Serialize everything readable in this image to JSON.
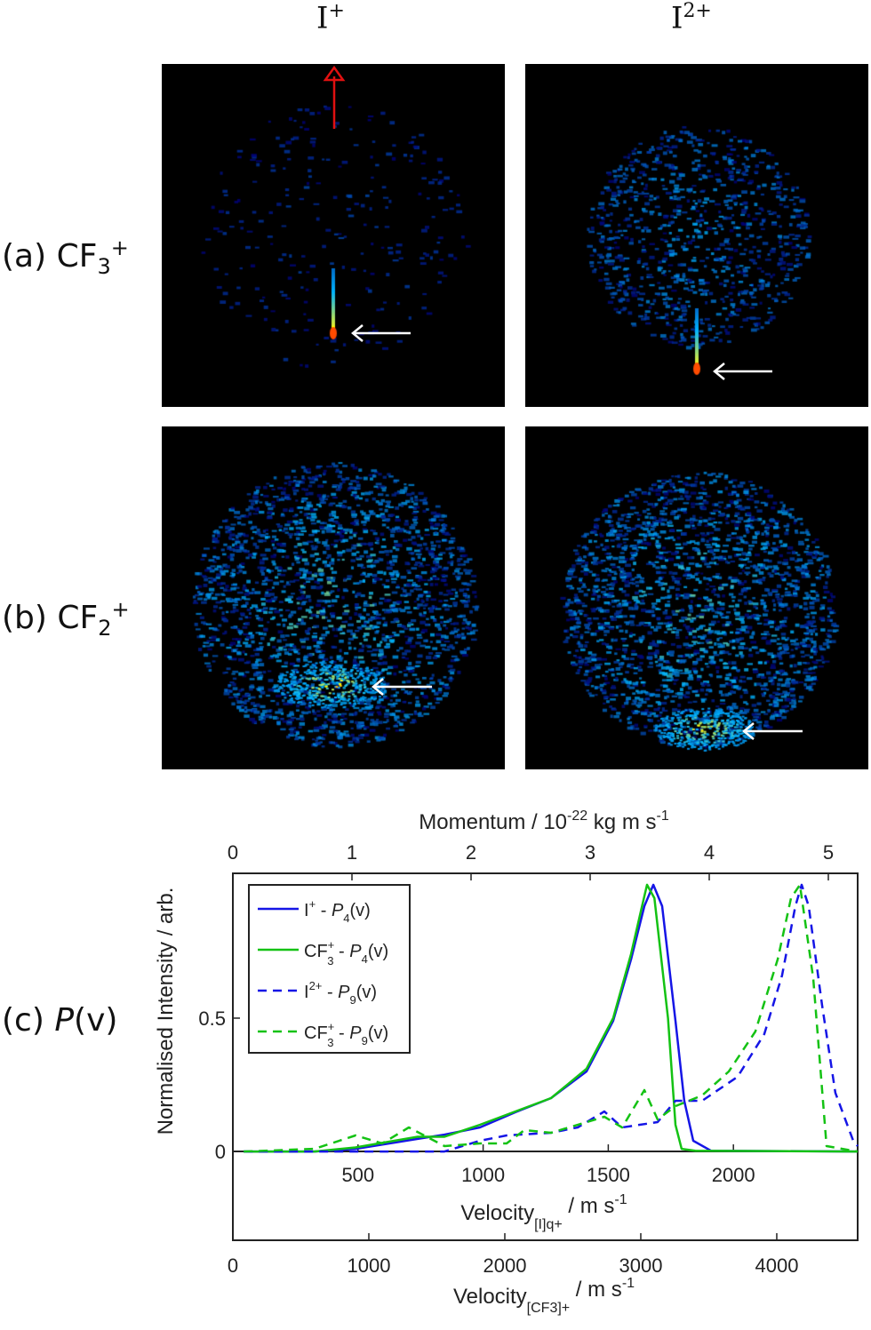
{
  "columns": {
    "c1": {
      "base": "I",
      "sup": "+"
    },
    "c2": {
      "base": "I",
      "sup": "2+"
    }
  },
  "rows": {
    "a": {
      "prefix": "(a) CF",
      "sub": "3",
      "sup": "+"
    },
    "b": {
      "prefix": "(b) CF",
      "sub": "2",
      "sup": "+"
    },
    "c": {
      "prefix": "(c) ",
      "italic": "P",
      "suffix": "(v)"
    }
  },
  "colors": {
    "blue": "#1515e6",
    "green": "#14c214",
    "image_bg": "#000000",
    "polarisation_arrow": "#e01010",
    "marker_arrow": "#ffffff"
  },
  "chart_data": {
    "type": "line",
    "xlabel_bottom": {
      "base": "Velocity",
      "sub": "[CF3]+",
      "unit": " / m s",
      "exp": "-1"
    },
    "xlabel_middle": {
      "base": "Velocity",
      "sub": "[I]q+",
      "unit": " / m s",
      "exp": "-1"
    },
    "xlabel_top": {
      "base": "Momentum / 10",
      "exp": "-22",
      "unit": " kg m s",
      "exp2": "-1"
    },
    "ylabel": "Normalised Intensity / arb.",
    "xlim": [
      0,
      4595
    ],
    "ylim": [
      -0.333,
      1.043
    ],
    "bottom_ticks": [
      0,
      1000,
      2000,
      3000,
      4000
    ],
    "middle_ticks": [
      500,
      1000,
      1500,
      2000
    ],
    "top_ticks": [
      0,
      1,
      2,
      3,
      4,
      5
    ],
    "y_ticks": [
      0,
      0.5
    ],
    "grid": false,
    "legend_position": "top-left",
    "series": [
      {
        "name": {
          "base": "I",
          "sup": "+",
          "sub": "",
          "p": "4"
        },
        "color": "#1515e6",
        "dash": false,
        "x": [
          80,
          600,
          902,
          1359,
          1556,
          1817,
          2078,
          2340,
          2601,
          2797,
          2928,
          3026,
          3092,
          3157,
          3255,
          3320,
          3386,
          3516,
          4595
        ],
        "y": [
          0,
          0,
          0.01,
          0.047,
          0.063,
          0.09,
          0.147,
          0.2,
          0.3,
          0.49,
          0.72,
          0.92,
          1.0,
          0.92,
          0.49,
          0.19,
          0.04,
          0.003,
          0
        ]
      },
      {
        "name": {
          "base": "CF",
          "sup": "+",
          "sub": "3",
          "p": "4"
        },
        "color": "#14c214",
        "dash": false,
        "x": [
          80,
          600,
          902,
          1359,
          1556,
          1817,
          2078,
          2340,
          2601,
          2797,
          2928,
          3000,
          3046,
          3100,
          3200,
          3255,
          3300,
          3400,
          4595
        ],
        "y": [
          0,
          0,
          0.015,
          0.055,
          0.055,
          0.1,
          0.15,
          0.2,
          0.31,
          0.5,
          0.74,
          0.9,
          1.0,
          0.95,
          0.5,
          0.1,
          0.01,
          0.003,
          0
        ]
      },
      {
        "name": {
          "base": "I",
          "sup": "2+",
          "sub": "",
          "p": "9"
        },
        "color": "#1515e6",
        "dash": true,
        "x": [
          80,
          1556,
          1817,
          2013,
          2340,
          2536,
          2732,
          2863,
          3124,
          3255,
          3451,
          3712,
          3908,
          4039,
          4137,
          4183,
          4235,
          4333,
          4431,
          4562,
          4595
        ],
        "y": [
          0,
          0,
          0.04,
          0.06,
          0.07,
          0.09,
          0.15,
          0.09,
          0.11,
          0.19,
          0.19,
          0.28,
          0.44,
          0.66,
          0.92,
          1.0,
          0.92,
          0.55,
          0.22,
          0.04,
          0.02
        ]
      },
      {
        "name": {
          "base": "CF",
          "sup": "+",
          "sub": "3",
          "p": "9"
        },
        "color": "#14c214",
        "dash": true,
        "x": [
          80,
          600,
          902,
          1098,
          1294,
          1556,
          1817,
          2013,
          2144,
          2340,
          2732,
          2863,
          3026,
          3124,
          3255,
          3451,
          3647,
          3843,
          4007,
          4105,
          4170,
          4268,
          4366,
          4595
        ],
        "y": [
          0,
          0.01,
          0.06,
          0.03,
          0.09,
          0.02,
          0.03,
          0.03,
          0.08,
          0.07,
          0.13,
          0.09,
          0.23,
          0.12,
          0.17,
          0.21,
          0.3,
          0.45,
          0.72,
          0.95,
          1.0,
          0.65,
          0.02,
          0
        ]
      }
    ]
  }
}
